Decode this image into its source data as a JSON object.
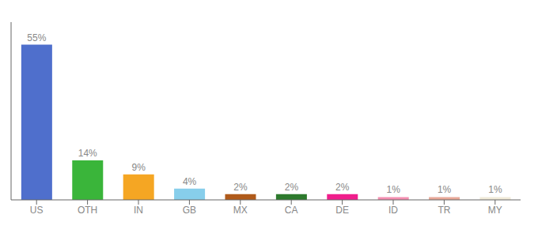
{
  "chart_data": {
    "type": "bar",
    "categories": [
      "US",
      "OTH",
      "IN",
      "GB",
      "MX",
      "CA",
      "DE",
      "ID",
      "TR",
      "MY"
    ],
    "values": [
      55,
      14,
      9,
      4,
      2,
      2,
      2,
      1,
      1,
      1
    ],
    "value_labels": [
      "55%",
      "14%",
      "9%",
      "4%",
      "2%",
      "2%",
      "2%",
      "1%",
      "1%",
      "1%"
    ],
    "data_labels": true,
    "colors": [
      "#4f6fcc",
      "#3ab53a",
      "#f5a623",
      "#87ceeb",
      "#b05a1a",
      "#2d7a2d",
      "#f01e8c",
      "#f48fb1",
      "#e8a898",
      "#f0ead8"
    ],
    "ylim": [
      0,
      63
    ],
    "tick_labels": "x",
    "grid": false
  }
}
